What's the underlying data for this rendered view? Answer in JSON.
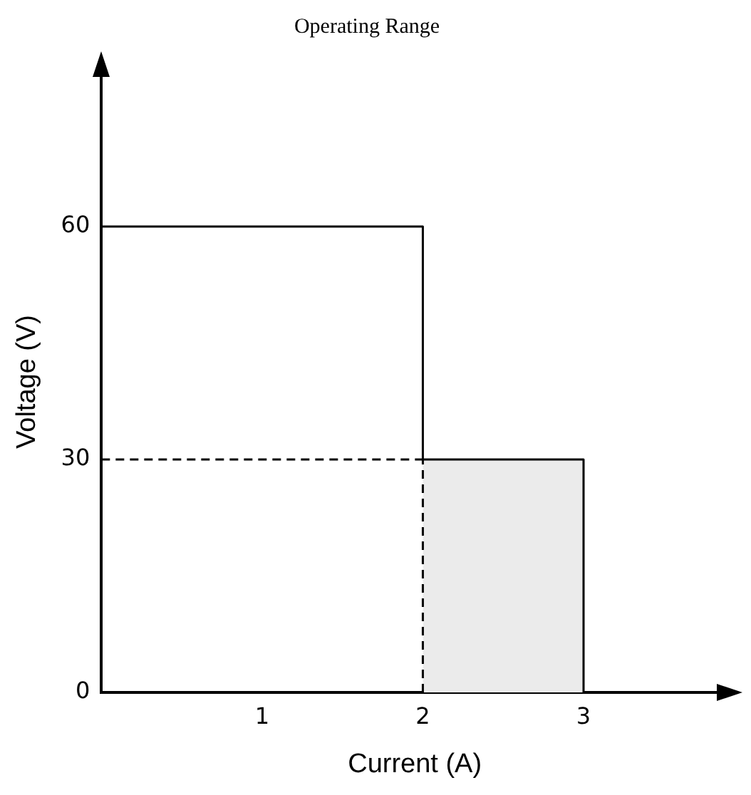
{
  "chart_data": {
    "type": "line",
    "title": "Operating Range",
    "xlabel": "Current (A)",
    "ylabel": "Voltage (V)",
    "xlim": [
      0,
      3.9
    ],
    "ylim": [
      0,
      80
    ],
    "xticks": [
      1,
      2,
      3
    ],
    "yticks": [
      0,
      30,
      60
    ],
    "grid": false,
    "legend": false,
    "marker": "none",
    "series": [
      {
        "type": "area",
        "color": "#ebebeb",
        "x": [
          2,
          3
        ],
        "values": [
          30,
          30
        ]
      },
      {
        "type": "line",
        "color": "#000000",
        "line_style": "solid",
        "x": [
          0,
          2,
          2,
          3,
          3
        ],
        "values": [
          60,
          60,
          30,
          30,
          0
        ]
      },
      {
        "type": "line",
        "color": "#000000",
        "line_style": "dashed",
        "x": [
          0,
          2
        ],
        "values": [
          30,
          30
        ]
      },
      {
        "type": "line",
        "color": "#000000",
        "line_style": "dashed",
        "x": [
          2,
          2
        ],
        "values": [
          0,
          30
        ]
      }
    ]
  }
}
